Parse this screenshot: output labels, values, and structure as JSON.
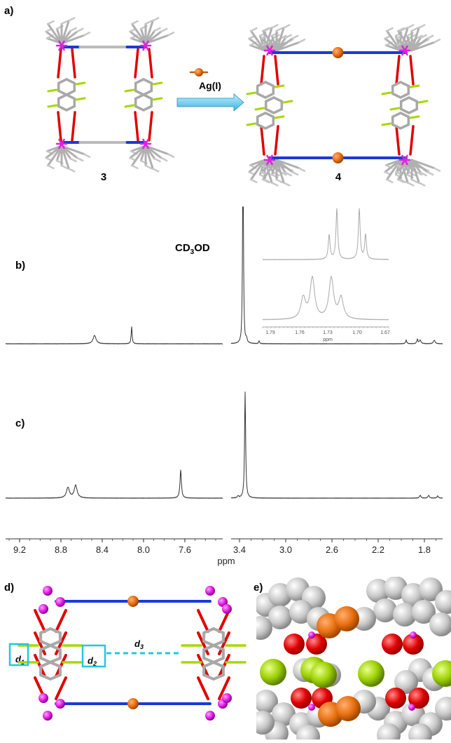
{
  "panels": {
    "a": {
      "label": "a)",
      "reagent": "Ag(I)",
      "compound_left": "3",
      "compound_right": "4"
    },
    "b": {
      "label": "b)",
      "solvent": {
        "text": "CD",
        "subscript": "3",
        "text_after": "OD"
      },
      "inset_axis": {
        "ticks": [
          "1.79",
          "1.76",
          "1.73",
          "1.70",
          "1.67"
        ],
        "unit": "ppm"
      }
    },
    "c": {
      "label": "c)"
    },
    "spectrum_axis": {
      "ticks": [
        "9.2",
        "8.8",
        "8.4",
        "8.0",
        "7.6",
        "3.4",
        "3.0",
        "2.6",
        "2.2",
        "1.8"
      ],
      "unit": "ppm"
    },
    "d": {
      "label": "d)",
      "distances": [
        {
          "symbol": "d",
          "subscript": "1"
        },
        {
          "symbol": "d",
          "subscript": "2"
        },
        {
          "symbol": "d",
          "subscript": "3"
        }
      ]
    },
    "e": {
      "label": "e)"
    }
  }
}
